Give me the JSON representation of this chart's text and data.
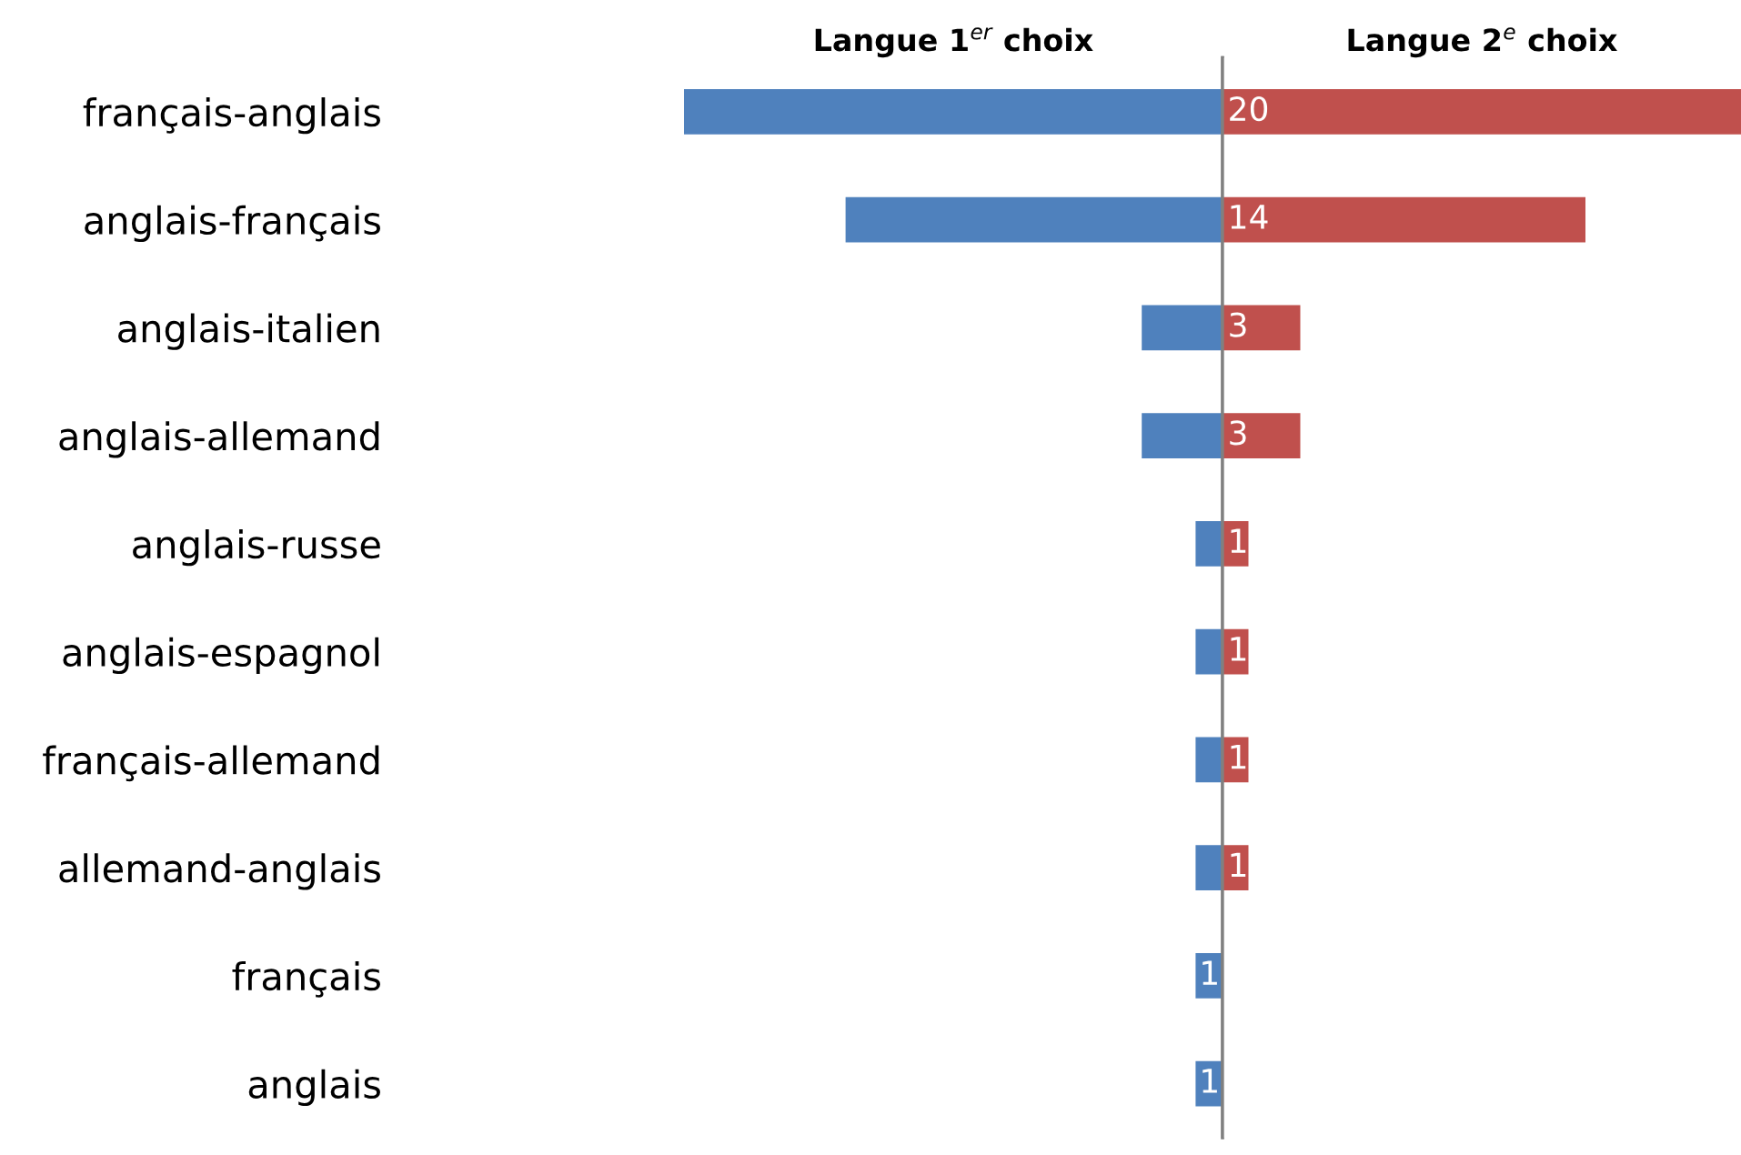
{
  "chart_data": [
    {
      "type": "bar",
      "orientation": "horizontal",
      "categories": [
        "français-anglais",
        "anglais-français",
        "anglais-italien",
        "anglais-allemand",
        "anglais-russe",
        "anglais-espagnol",
        "français-allemand",
        "allemand-anglais",
        "français",
        "anglais"
      ],
      "series": [
        {
          "name": "Langue 1$^{er}$ choix",
          "color": "#4f81bd",
          "values": [
            20,
            14,
            3,
            3,
            1,
            1,
            1,
            1,
            1,
            1
          ],
          "value_labels": [
            null,
            null,
            null,
            null,
            null,
            null,
            null,
            null,
            "1",
            "1"
          ]
        }
      ],
      "xlim": [
        20,
        0
      ],
      "tick_labels": "y",
      "grid": false,
      "legend": false
    },
    {
      "type": "bar",
      "orientation": "horizontal",
      "categories": [
        null,
        null,
        null,
        null,
        null,
        null,
        null,
        null,
        null,
        null
      ],
      "series": [
        {
          "name": "Langue 2$^{e}$ choix",
          "color": "#c0504d",
          "values": [
            20,
            14,
            3,
            3,
            1,
            1,
            1,
            1,
            null,
            null
          ],
          "value_labels": [
            "20",
            "14",
            "3",
            "3",
            "1",
            "1",
            "1",
            "1",
            null,
            null
          ]
        }
      ],
      "xlim": [
        0,
        20
      ],
      "tick_labels": false,
      "grid": false,
      "legend": false
    }
  ]
}
